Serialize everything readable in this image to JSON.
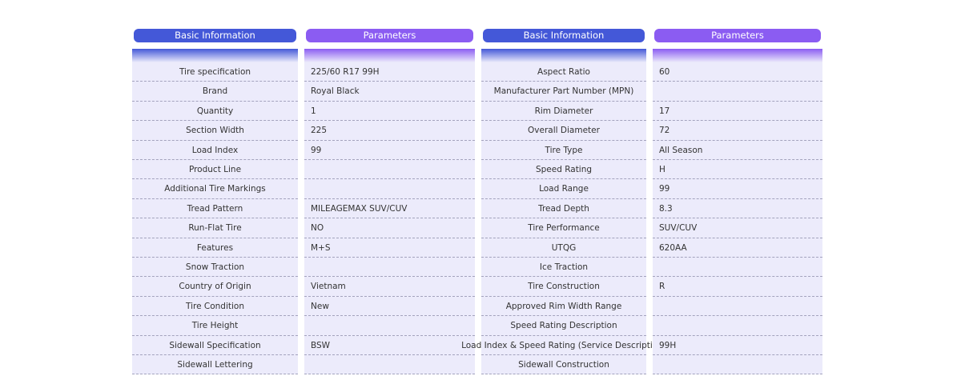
{
  "tables": [
    {
      "headers": [
        "Basic Information",
        "Parameters"
      ],
      "rows": [
        [
          "Tire specification",
          "225/60 R17 99H"
        ],
        [
          "Brand",
          "Royal Black"
        ],
        [
          "Quantity",
          "1"
        ],
        [
          "Section Width",
          "225"
        ],
        [
          "Load Index",
          "99"
        ],
        [
          "Product Line",
          null
        ],
        [
          "Additional Tire Markings",
          null
        ],
        [
          "Tread Pattern",
          "MILEAGEMAX SUV/CUV"
        ],
        [
          "Run-Flat Tire",
          "NO"
        ],
        [
          "Features",
          "M+S"
        ],
        [
          "Snow Traction",
          null
        ],
        [
          "Country of Origin",
          "Vietnam"
        ],
        [
          "Tire Condition",
          "New"
        ],
        [
          "Tire Height",
          null
        ],
        [
          "Sidewall Specification",
          "BSW"
        ],
        [
          "Sidewall Lettering",
          null
        ]
      ]
    },
    {
      "headers": [
        "Basic Information",
        "Parameters"
      ],
      "rows": [
        [
          "Aspect Ratio",
          "60"
        ],
        [
          "Manufacturer Part Number (MPN)",
          null
        ],
        [
          "Rim Diameter",
          "17"
        ],
        [
          "Overall Diameter",
          "72"
        ],
        [
          "Tire Type",
          "All Season"
        ],
        [
          "Speed Rating",
          "H"
        ],
        [
          "Load Range",
          "99"
        ],
        [
          "Tread Depth",
          "8.3"
        ],
        [
          "Tire Performance",
          "SUV/CUV"
        ],
        [
          "UTQG",
          "620AA"
        ],
        [
          "Ice Traction",
          null
        ],
        [
          "Tire Construction",
          "R"
        ],
        [
          "Approved Rim Width Range",
          null
        ],
        [
          "Speed Rating Description",
          null
        ],
        [
          "Load Index & Speed Rating (Service Description)",
          "99H"
        ],
        [
          "Sidewall Construction",
          null
        ]
      ]
    }
  ]
}
